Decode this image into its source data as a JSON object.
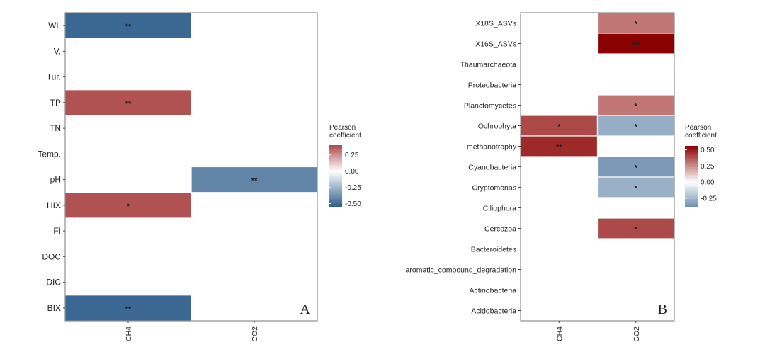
{
  "chart_data": [
    {
      "type": "heatmap",
      "panel_label": "A",
      "x_categories": [
        "CH4",
        "CO2"
      ],
      "y_categories": [
        "WL",
        "V.",
        "Tur.",
        "TP",
        "TN",
        "Temp.",
        "pH",
        "HIX",
        "FI",
        "DOC",
        "DIC",
        "BIX"
      ],
      "cells": [
        {
          "x": "CH4",
          "y": "WL",
          "value": -0.52,
          "sig": "**"
        },
        {
          "x": "CH4",
          "y": "TP",
          "value": 0.38,
          "sig": "**"
        },
        {
          "x": "CO2",
          "y": "pH",
          "value": -0.42,
          "sig": "**"
        },
        {
          "x": "CH4",
          "y": "HIX",
          "value": 0.38,
          "sig": "*"
        },
        {
          "x": "CH4",
          "y": "BIX",
          "value": -0.52,
          "sig": "**"
        }
      ],
      "legend": {
        "title": "Pearson\ncoefficient",
        "ticks": [
          "0.25",
          "0.00",
          "-0.25",
          "-0.50"
        ],
        "range": [
          -0.55,
          0.4
        ],
        "placement": "right"
      },
      "colors": {
        "negative": "#2b5c8a",
        "zero": "#ffffff",
        "positive": "#8b0000"
      }
    },
    {
      "type": "heatmap",
      "panel_label": "B",
      "x_categories": [
        "CH4",
        "CO2"
      ],
      "y_categories": [
        "X18S_ASVs",
        "X16S_ASVs",
        "Thaumarchaeota",
        "Proteobacteria",
        "Planctomycetes",
        "Ochrophyta",
        "methanotrophy",
        "Cyanobacteria",
        "Cryptomonas",
        "Ciliophora",
        "Cercozoa",
        "Bacteroidetes",
        "aromatic_compound_degradation",
        "Actinobacteria",
        "Acidobacteria"
      ],
      "cells": [
        {
          "x": "CO2",
          "y": "X18S_ASVs",
          "value": 0.3,
          "sig": "*"
        },
        {
          "x": "CO2",
          "y": "X16S_ASVs",
          "value": 0.56,
          "sig": "***"
        },
        {
          "x": "CO2",
          "y": "Planctomycetes",
          "value": 0.3,
          "sig": "*"
        },
        {
          "x": "CH4",
          "y": "Ochrophyta",
          "value": 0.4,
          "sig": "*"
        },
        {
          "x": "CO2",
          "y": "Ochrophyta",
          "value": -0.28,
          "sig": "*"
        },
        {
          "x": "CH4",
          "y": "methanotrophy",
          "value": 0.47,
          "sig": "**"
        },
        {
          "x": "CO2",
          "y": "Cyanobacteria",
          "value": -0.35,
          "sig": "*"
        },
        {
          "x": "CO2",
          "y": "Cryptomonas",
          "value": -0.27,
          "sig": "*"
        },
        {
          "x": "CO2",
          "y": "Cercozoa",
          "value": 0.4,
          "sig": "*"
        }
      ],
      "legend": {
        "title": "Pearson\ncoefficient",
        "ticks": [
          "0.50",
          "0.25",
          "0.00",
          "-0.25"
        ],
        "range": [
          -0.38,
          0.56
        ],
        "placement": "right"
      },
      "colors": {
        "negative": "#2b5c8a",
        "zero": "#ffffff",
        "positive": "#8b0000"
      }
    }
  ]
}
